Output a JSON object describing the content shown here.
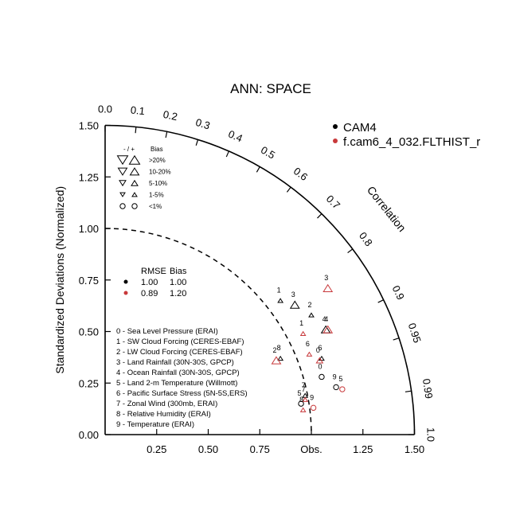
{
  "chart_data": {
    "type": "taylor",
    "title": "ANN: SPACE",
    "ylabel": "Standardized Deviations (Normalized)",
    "arc_label": "Correlation",
    "obs_label": "Obs.",
    "xticks": [
      "0.25",
      "0.50",
      "0.75",
      "Obs.",
      "1.25",
      "1.50"
    ],
    "yticks": [
      "0.00",
      "0.25",
      "0.50",
      "0.75",
      "1.00",
      "1.25",
      "1.50"
    ],
    "correlation_ticks": [
      {
        "r": 0.0,
        "label": "0.0"
      },
      {
        "r": 0.1,
        "label": "0.1"
      },
      {
        "r": 0.2,
        "label": "0.2"
      },
      {
        "r": 0.3,
        "label": "0.3"
      },
      {
        "r": 0.4,
        "label": "0.4"
      },
      {
        "r": 0.5,
        "label": "0.5"
      },
      {
        "r": 0.6,
        "label": "0.6"
      },
      {
        "r": 0.7,
        "label": "0.7"
      },
      {
        "r": 0.8,
        "label": "0.8"
      },
      {
        "r": 0.9,
        "label": "0.9"
      },
      {
        "r": 0.95,
        "label": "0.95"
      },
      {
        "r": 0.99,
        "label": "0.99"
      },
      {
        "r": 1.0,
        "label": "1.0"
      }
    ],
    "sd_max": 1.5,
    "ref_sd": 1.0,
    "series": [
      {
        "name": "CAM4",
        "color": "#000000",
        "points": [
          {
            "id": "0",
            "x": 1.05,
            "y": 0.28,
            "bias": "<1%"
          },
          {
            "id": "1",
            "x": 0.85,
            "y": 0.65,
            "bias": "1-5%"
          },
          {
            "id": "2",
            "x": 1.0,
            "y": 0.58,
            "bias": "1-5%"
          },
          {
            "id": "3",
            "x": 0.92,
            "y": 0.63,
            "bias": "10-20%"
          },
          {
            "id": "4",
            "x": 1.07,
            "y": 0.51,
            "bias": "10-20%"
          },
          {
            "id": "5",
            "x": 0.95,
            "y": 0.15,
            "bias": "<1%"
          },
          {
            "id": "6",
            "x": 1.05,
            "y": 0.37,
            "bias": "1-5%"
          },
          {
            "id": "7",
            "x": 0.97,
            "y": 0.19,
            "bias": "1-5%"
          },
          {
            "id": "8",
            "x": 0.85,
            "y": 0.37,
            "bias": "1-5%"
          },
          {
            "id": "9",
            "x": 1.12,
            "y": 0.23,
            "bias": "<1%"
          }
        ]
      },
      {
        "name": "f.cam6_4_032.FLTHIST_r",
        "color": "#c8393b",
        "points": [
          {
            "id": "0",
            "x": 1.04,
            "y": 0.36,
            "bias": "5-10%"
          },
          {
            "id": "1",
            "x": 0.96,
            "y": 0.49,
            "bias": "1-5%"
          },
          {
            "id": "2",
            "x": 0.83,
            "y": 0.36,
            "bias": "10-20%"
          },
          {
            "id": "3",
            "x": 1.08,
            "y": 0.71,
            "bias": "10-20%"
          },
          {
            "id": "4",
            "x": 1.08,
            "y": 0.51,
            "bias": "10-20%"
          },
          {
            "id": "5",
            "x": 1.15,
            "y": 0.22,
            "bias": "<1%"
          },
          {
            "id": "6",
            "x": 0.99,
            "y": 0.39,
            "bias": "1-5%"
          },
          {
            "id": "7",
            "x": 0.97,
            "y": 0.17,
            "bias": "1-5%"
          },
          {
            "id": "8",
            "x": 0.96,
            "y": 0.12,
            "bias": "1-5%"
          },
          {
            "id": "9",
            "x": 1.01,
            "y": 0.13,
            "bias": "<1%"
          }
        ]
      }
    ],
    "bias_legend": {
      "header_sign": "- / +",
      "header_bias": "Bias",
      "rows": [
        {
          "label": ">20%",
          "shape": "triangle-lg"
        },
        {
          "label": "10-20%",
          "shape": "triangle-md"
        },
        {
          "label": "5-10%",
          "shape": "triangle-sm"
        },
        {
          "label": "1-5%",
          "shape": "triangle-xs"
        },
        {
          "label": "<1%",
          "shape": "circle"
        }
      ]
    },
    "rmse_table": {
      "headers": [
        "RMSE",
        "Bias"
      ],
      "rows": [
        {
          "color": "#000000",
          "rmse": "1.00",
          "bias": "1.00"
        },
        {
          "color": "#c8393b",
          "rmse": "0.89",
          "bias": "1.20"
        }
      ]
    },
    "variables": [
      "0 - Sea Level Pressure (ERAI)",
      "1 - SW Cloud Forcing (CERES-EBAF)",
      "2 - LW Cloud Forcing (CERES-EBAF)",
      "3 - Land Rainfall (30N-30S, GPCP)",
      "4 - Ocean Rainfall (30N-30S, GPCP)",
      "5 - Land 2-m Temperature (Willmott)",
      "6 - Pacific Surface Stress (5N-5S,ERS)",
      "7 - Zonal Wind (300mb, ERAI)",
      "8 - Relative Humidity (ERAI)",
      "9 - Temperature (ERAI)"
    ],
    "legend_placement": "top-right"
  }
}
